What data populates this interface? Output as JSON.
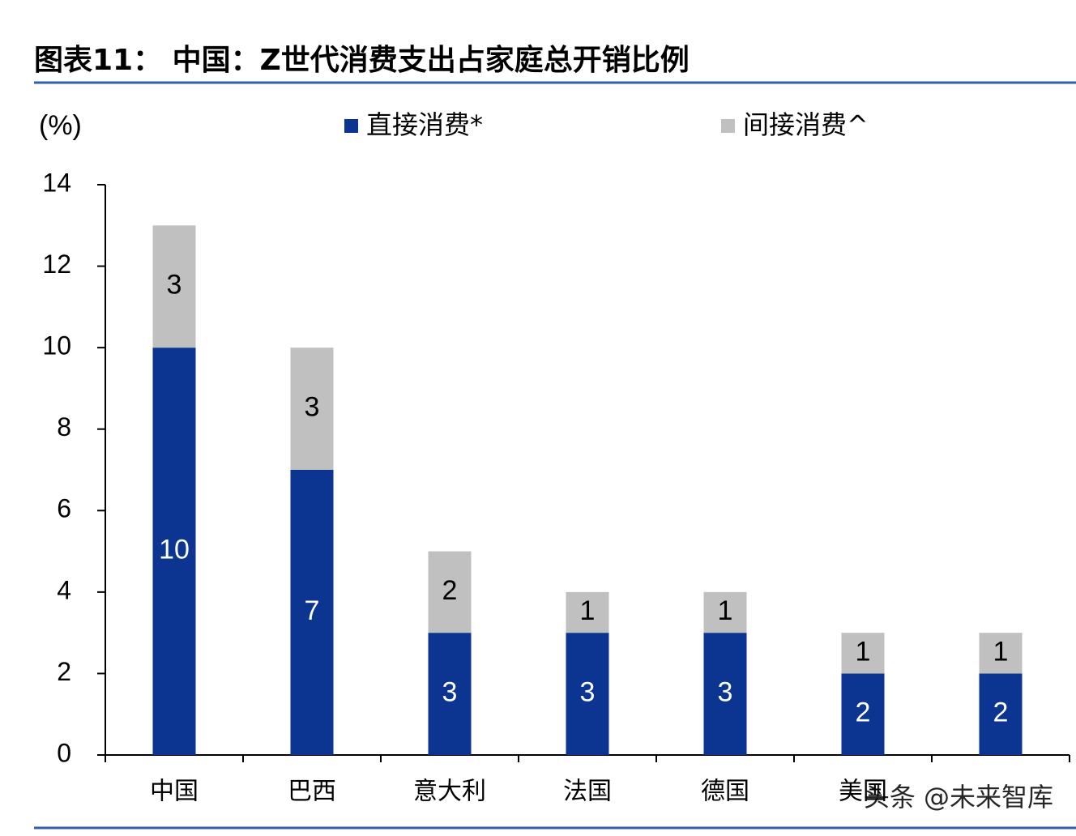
{
  "chart_data": {
    "type": "stacked-bar",
    "title": "图表11：  中国：Z世代消费支出占家庭总开销比例",
    "y_label": "(%)",
    "categories": [
      "中国",
      "巴西",
      "意大利",
      "法国",
      "德国",
      "美国",
      null
    ],
    "series": [
      {
        "name": "直接消费*",
        "color": "#0b3590",
        "values": [
          10,
          7,
          3,
          3,
          3,
          2,
          2
        ]
      },
      {
        "name": "间接消费^",
        "color": "#c0c0c0",
        "values": [
          3,
          3,
          2,
          1,
          1,
          1,
          1
        ]
      }
    ],
    "ylim": [
      0,
      14
    ],
    "yticks": [
      0,
      2,
      4,
      6,
      8,
      10,
      12,
      14
    ],
    "watermark": "头条 @未来智库"
  }
}
